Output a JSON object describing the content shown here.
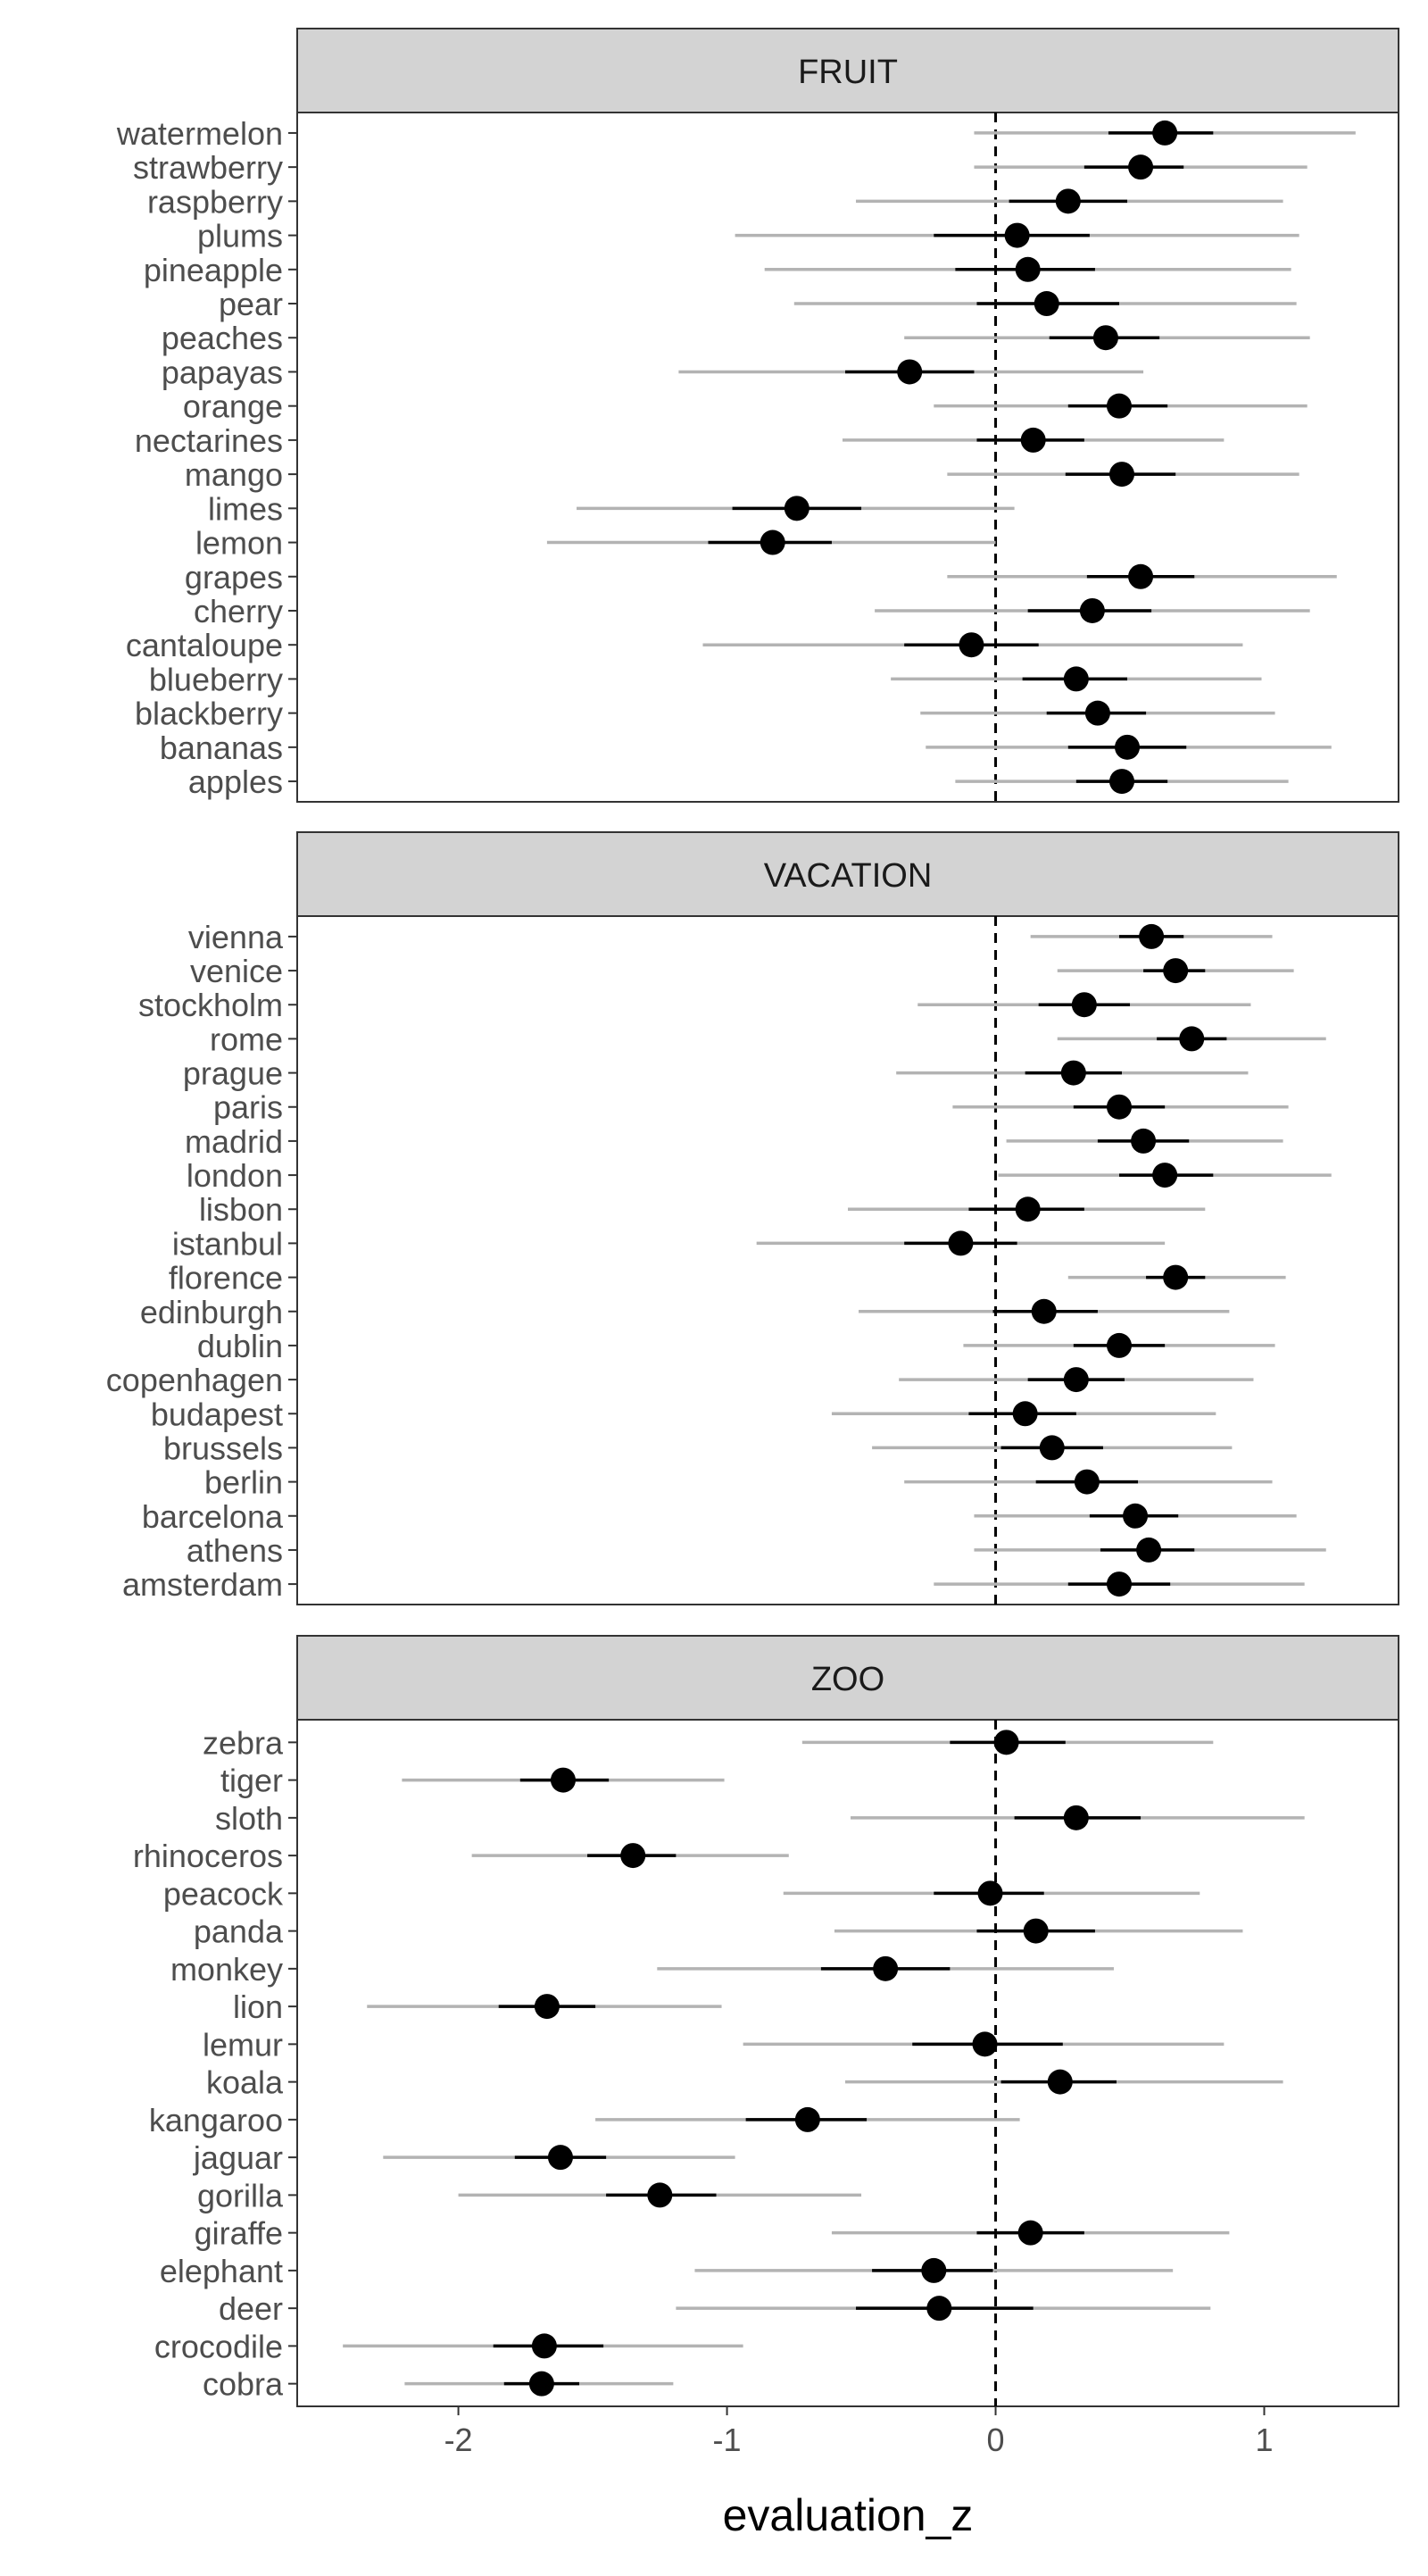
{
  "chart_data": {
    "type": "forest",
    "xlabel": "evaluation_z",
    "xlim": [
      -2.6,
      1.5
    ],
    "x_ticks": [
      "-2",
      "-1",
      "0",
      "1"
    ],
    "x_tick_values": [
      -2,
      -1,
      0,
      1
    ],
    "reference_line": 0,
    "colors": {
      "point": "#000000",
      "inner_interval": "#000000",
      "outer_interval": "#b3b3b3",
      "strip_bg": "#d3d3d3",
      "border": "#333333",
      "text": "#4d4d4d"
    },
    "panels": [
      {
        "title": "FRUIT",
        "items": [
          {
            "label": "watermelon",
            "mean": 0.63,
            "lo1": 0.42,
            "hi1": 0.81,
            "lo2": -0.08,
            "hi2": 1.34
          },
          {
            "label": "strawberry",
            "mean": 0.54,
            "lo1": 0.33,
            "hi1": 0.7,
            "lo2": -0.08,
            "hi2": 1.16
          },
          {
            "label": "raspberry",
            "mean": 0.27,
            "lo1": 0.05,
            "hi1": 0.49,
            "lo2": -0.52,
            "hi2": 1.07
          },
          {
            "label": "plums",
            "mean": 0.08,
            "lo1": -0.23,
            "hi1": 0.35,
            "lo2": -0.97,
            "hi2": 1.13
          },
          {
            "label": "pineapple",
            "mean": 0.12,
            "lo1": -0.15,
            "hi1": 0.37,
            "lo2": -0.86,
            "hi2": 1.1
          },
          {
            "label": "pear",
            "mean": 0.19,
            "lo1": -0.07,
            "hi1": 0.46,
            "lo2": -0.75,
            "hi2": 1.12
          },
          {
            "label": "peaches",
            "mean": 0.41,
            "lo1": 0.2,
            "hi1": 0.61,
            "lo2": -0.34,
            "hi2": 1.17
          },
          {
            "label": "papayas",
            "mean": -0.32,
            "lo1": -0.56,
            "hi1": -0.08,
            "lo2": -1.18,
            "hi2": 0.55
          },
          {
            "label": "orange",
            "mean": 0.46,
            "lo1": 0.27,
            "hi1": 0.64,
            "lo2": -0.23,
            "hi2": 1.16
          },
          {
            "label": "nectarines",
            "mean": 0.14,
            "lo1": -0.07,
            "hi1": 0.33,
            "lo2": -0.57,
            "hi2": 0.85
          },
          {
            "label": "mango",
            "mean": 0.47,
            "lo1": 0.26,
            "hi1": 0.67,
            "lo2": -0.18,
            "hi2": 1.13
          },
          {
            "label": "limes",
            "mean": -0.74,
            "lo1": -0.98,
            "hi1": -0.5,
            "lo2": -1.56,
            "hi2": 0.07
          },
          {
            "label": "lemon",
            "mean": -0.83,
            "lo1": -1.07,
            "hi1": -0.61,
            "lo2": -1.67,
            "hi2": 0.0
          },
          {
            "label": "grapes",
            "mean": 0.54,
            "lo1": 0.34,
            "hi1": 0.74,
            "lo2": -0.18,
            "hi2": 1.27
          },
          {
            "label": "cherry",
            "mean": 0.36,
            "lo1": 0.12,
            "hi1": 0.58,
            "lo2": -0.45,
            "hi2": 1.17
          },
          {
            "label": "cantaloupe",
            "mean": -0.09,
            "lo1": -0.34,
            "hi1": 0.16,
            "lo2": -1.09,
            "hi2": 0.92
          },
          {
            "label": "blueberry",
            "mean": 0.3,
            "lo1": 0.1,
            "hi1": 0.49,
            "lo2": -0.39,
            "hi2": 0.99
          },
          {
            "label": "blackberry",
            "mean": 0.38,
            "lo1": 0.19,
            "hi1": 0.56,
            "lo2": -0.28,
            "hi2": 1.04
          },
          {
            "label": "bananas",
            "mean": 0.49,
            "lo1": 0.27,
            "hi1": 0.71,
            "lo2": -0.26,
            "hi2": 1.25
          },
          {
            "label": "apples",
            "mean": 0.47,
            "lo1": 0.3,
            "hi1": 0.64,
            "lo2": -0.15,
            "hi2": 1.09
          }
        ]
      },
      {
        "title": "VACATION",
        "items": [
          {
            "label": "vienna",
            "mean": 0.58,
            "lo1": 0.46,
            "hi1": 0.7,
            "lo2": 0.13,
            "hi2": 1.03
          },
          {
            "label": "venice",
            "mean": 0.67,
            "lo1": 0.55,
            "hi1": 0.78,
            "lo2": 0.23,
            "hi2": 1.11
          },
          {
            "label": "stockholm",
            "mean": 0.33,
            "lo1": 0.16,
            "hi1": 0.5,
            "lo2": -0.29,
            "hi2": 0.95
          },
          {
            "label": "rome",
            "mean": 0.73,
            "lo1": 0.6,
            "hi1": 0.86,
            "lo2": 0.23,
            "hi2": 1.23
          },
          {
            "label": "prague",
            "mean": 0.29,
            "lo1": 0.11,
            "hi1": 0.47,
            "lo2": -0.37,
            "hi2": 0.94
          },
          {
            "label": "paris",
            "mean": 0.46,
            "lo1": 0.29,
            "hi1": 0.63,
            "lo2": -0.16,
            "hi2": 1.09
          },
          {
            "label": "madrid",
            "mean": 0.55,
            "lo1": 0.38,
            "hi1": 0.72,
            "lo2": 0.04,
            "hi2": 1.07
          },
          {
            "label": "london",
            "mean": 0.63,
            "lo1": 0.46,
            "hi1": 0.81,
            "lo2": 0.01,
            "hi2": 1.25
          },
          {
            "label": "lisbon",
            "mean": 0.12,
            "lo1": -0.1,
            "hi1": 0.33,
            "lo2": -0.55,
            "hi2": 0.78
          },
          {
            "label": "istanbul",
            "mean": -0.13,
            "lo1": -0.34,
            "hi1": 0.08,
            "lo2": -0.89,
            "hi2": 0.63
          },
          {
            "label": "florence",
            "mean": 0.67,
            "lo1": 0.56,
            "hi1": 0.78,
            "lo2": 0.27,
            "hi2": 1.08
          },
          {
            "label": "edinburgh",
            "mean": 0.18,
            "lo1": -0.01,
            "hi1": 0.38,
            "lo2": -0.51,
            "hi2": 0.87
          },
          {
            "label": "dublin",
            "mean": 0.46,
            "lo1": 0.29,
            "hi1": 0.63,
            "lo2": -0.12,
            "hi2": 1.04
          },
          {
            "label": "copenhagen",
            "mean": 0.3,
            "lo1": 0.12,
            "hi1": 0.48,
            "lo2": -0.36,
            "hi2": 0.96
          },
          {
            "label": "budapest",
            "mean": 0.11,
            "lo1": -0.1,
            "hi1": 0.3,
            "lo2": -0.61,
            "hi2": 0.82
          },
          {
            "label": "brussels",
            "mean": 0.21,
            "lo1": 0.02,
            "hi1": 0.4,
            "lo2": -0.46,
            "hi2": 0.88
          },
          {
            "label": "berlin",
            "mean": 0.34,
            "lo1": 0.15,
            "hi1": 0.53,
            "lo2": -0.34,
            "hi2": 1.03
          },
          {
            "label": "barcelona",
            "mean": 0.52,
            "lo1": 0.35,
            "hi1": 0.68,
            "lo2": -0.08,
            "hi2": 1.12
          },
          {
            "label": "athens",
            "mean": 0.57,
            "lo1": 0.39,
            "hi1": 0.74,
            "lo2": -0.08,
            "hi2": 1.23
          },
          {
            "label": "amsterdam",
            "mean": 0.46,
            "lo1": 0.27,
            "hi1": 0.65,
            "lo2": -0.23,
            "hi2": 1.15
          }
        ]
      },
      {
        "title": "ZOO",
        "items": [
          {
            "label": "zebra",
            "mean": 0.04,
            "lo1": -0.17,
            "hi1": 0.26,
            "lo2": -0.72,
            "hi2": 0.81
          },
          {
            "label": "tiger",
            "mean": -1.61,
            "lo1": -1.77,
            "hi1": -1.44,
            "lo2": -2.21,
            "hi2": -1.01
          },
          {
            "label": "sloth",
            "mean": 0.3,
            "lo1": 0.07,
            "hi1": 0.54,
            "lo2": -0.54,
            "hi2": 1.15
          },
          {
            "label": "rhinoceros",
            "mean": -1.35,
            "lo1": -1.52,
            "hi1": -1.19,
            "lo2": -1.95,
            "hi2": -0.77
          },
          {
            "label": "peacock",
            "mean": -0.02,
            "lo1": -0.23,
            "hi1": 0.18,
            "lo2": -0.79,
            "hi2": 0.76
          },
          {
            "label": "panda",
            "mean": 0.15,
            "lo1": -0.07,
            "hi1": 0.37,
            "lo2": -0.6,
            "hi2": 0.92
          },
          {
            "label": "monkey",
            "mean": -0.41,
            "lo1": -0.65,
            "hi1": -0.17,
            "lo2": -1.26,
            "hi2": 0.44
          },
          {
            "label": "lion",
            "mean": -1.67,
            "lo1": -1.85,
            "hi1": -1.49,
            "lo2": -2.34,
            "hi2": -1.02
          },
          {
            "label": "lemur",
            "mean": -0.04,
            "lo1": -0.31,
            "hi1": 0.25,
            "lo2": -0.94,
            "hi2": 0.85
          },
          {
            "label": "koala",
            "mean": 0.24,
            "lo1": 0.02,
            "hi1": 0.45,
            "lo2": -0.56,
            "hi2": 1.07
          },
          {
            "label": "kangaroo",
            "mean": -0.7,
            "lo1": -0.93,
            "hi1": -0.48,
            "lo2": -1.49,
            "hi2": 0.09
          },
          {
            "label": "jaguar",
            "mean": -1.62,
            "lo1": -1.79,
            "hi1": -1.45,
            "lo2": -2.28,
            "hi2": -0.97
          },
          {
            "label": "gorilla",
            "mean": -1.25,
            "lo1": -1.45,
            "hi1": -1.04,
            "lo2": -2.0,
            "hi2": -0.5
          },
          {
            "label": "giraffe",
            "mean": 0.13,
            "lo1": -0.07,
            "hi1": 0.33,
            "lo2": -0.61,
            "hi2": 0.87
          },
          {
            "label": "elephant",
            "mean": -0.23,
            "lo1": -0.46,
            "hi1": -0.01,
            "lo2": -1.12,
            "hi2": 0.66
          },
          {
            "label": "deer",
            "mean": -0.21,
            "lo1": -0.52,
            "hi1": 0.14,
            "lo2": -1.19,
            "hi2": 0.8
          },
          {
            "label": "crocodile",
            "mean": -1.68,
            "lo1": -1.87,
            "hi1": -1.46,
            "lo2": -2.43,
            "hi2": -0.94
          },
          {
            "label": "cobra",
            "mean": -1.69,
            "lo1": -1.83,
            "hi1": -1.55,
            "lo2": -2.2,
            "hi2": -1.2
          }
        ]
      }
    ]
  }
}
